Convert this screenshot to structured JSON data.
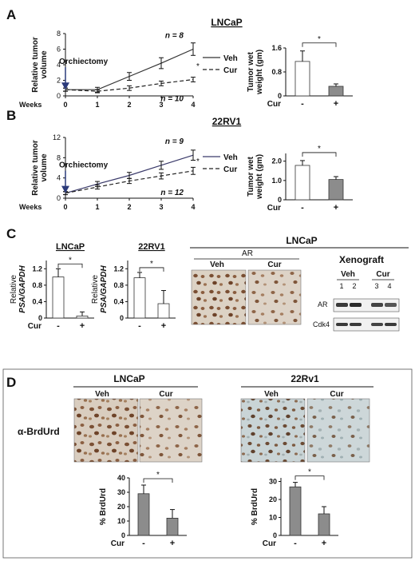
{
  "panels": {
    "A": {
      "letter": "A",
      "title": "LNCaP",
      "line": {
        "chart_data": {
          "type": "line",
          "ylabel": "Relative tumor volume",
          "xlabel": "Weeks",
          "x_ticks": [
            "0",
            "1",
            "2",
            "3",
            "4"
          ],
          "y_ticks": [
            "0",
            "2",
            "4",
            "6",
            "8"
          ],
          "ylim": [
            0,
            8
          ],
          "annotation": "Orchiectomy",
          "series": [
            {
              "name": "Veh",
              "n_label": "n = 8",
              "x": [
                0,
                1,
                2,
                3,
                4
              ],
              "y": [
                0.8,
                0.8,
                2.5,
                4.2,
                6.0
              ],
              "err": [
                0.2,
                0.3,
                0.5,
                0.7,
                0.8
              ],
              "style": "solid"
            },
            {
              "name": "Cur",
              "n_label": "n = 10",
              "x": [
                0,
                1,
                2,
                3,
                4
              ],
              "y": [
                0.8,
                0.6,
                1.0,
                1.6,
                2.1
              ],
              "err": [
                0.2,
                0.2,
                0.3,
                0.3,
                0.3
              ],
              "style": "dashed"
            }
          ],
          "star": "*"
        }
      },
      "bar": {
        "chart_data": {
          "type": "bar",
          "ylabel": "Tumor wet weight (gm)",
          "xlabel": "Cur",
          "categories": [
            "-",
            "+"
          ],
          "values": [
            1.15,
            0.32
          ],
          "err": [
            0.35,
            0.08
          ],
          "y_ticks": [
            "0",
            "0.8",
            "1.6"
          ],
          "ylim": [
            0,
            1.6
          ],
          "star": "*"
        }
      }
    },
    "B": {
      "letter": "B",
      "title": "22RV1",
      "line": {
        "chart_data": {
          "type": "line",
          "ylabel": "Relative tumor volume",
          "xlabel": "Weeks",
          "x_ticks": [
            "0",
            "1",
            "2",
            "3",
            "4"
          ],
          "y_ticks": [
            "0",
            "4",
            "8",
            "12"
          ],
          "ylim": [
            0,
            12
          ],
          "annotation": "Orchiectomy",
          "series": [
            {
              "name": "Veh",
              "n_label": "n = 9",
              "x": [
                0,
                1,
                2,
                3,
                4
              ],
              "y": [
                1.0,
                2.8,
                4.5,
                6.5,
                8.5
              ],
              "err": [
                0.3,
                0.5,
                0.6,
                0.8,
                1.0
              ],
              "style": "solid"
            },
            {
              "name": "Cur",
              "n_label": "n = 12",
              "x": [
                0,
                1,
                2,
                3,
                4
              ],
              "y": [
                1.0,
                2.2,
                3.4,
                4.4,
                5.4
              ],
              "err": [
                0.3,
                0.4,
                0.5,
                0.6,
                0.7
              ],
              "style": "dashed"
            }
          ],
          "star": "*"
        }
      },
      "bar": {
        "chart_data": {
          "type": "bar",
          "ylabel": "Tumor wet weight (gm)",
          "xlabel": "Cur",
          "categories": [
            "-",
            "+"
          ],
          "values": [
            1.78,
            1.05
          ],
          "err": [
            0.25,
            0.15
          ],
          "y_ticks": [
            "0",
            "1.0",
            "2.0"
          ],
          "ylim": [
            0,
            2.4
          ],
          "star": "*"
        }
      }
    },
    "C": {
      "letter": "C",
      "bar_lncap": {
        "chart_data": {
          "type": "bar",
          "title": "LNCaP",
          "ylabel_prefix": "Relative",
          "ylabel_italic": "PSA/GAPDH",
          "xlabel": "Cur",
          "categories": [
            "-",
            "+"
          ],
          "values": [
            1.0,
            0.05
          ],
          "err": [
            0.2,
            0.1
          ],
          "y_ticks": [
            "0",
            "0.4",
            "0.8",
            "1.2"
          ],
          "ylim": [
            0,
            1.4
          ],
          "star": "*"
        }
      },
      "bar_22rv1": {
        "chart_data": {
          "type": "bar",
          "title": "22RV1",
          "ylabel_prefix": "Relative",
          "ylabel_italic": "PSA/GAPDH",
          "categories": [
            "-",
            "+"
          ],
          "values": [
            0.98,
            0.35
          ],
          "err": [
            0.13,
            0.32
          ],
          "y_ticks": [
            "0",
            "0.4",
            "0.8",
            "1.2"
          ],
          "ylim": [
            0,
            1.4
          ],
          "star": "*"
        }
      },
      "ihc_title": "LNCaP",
      "ihc_sub": "AR",
      "ihc_labels": [
        "Veh",
        "Cur"
      ],
      "blot": {
        "title": "Xenograft",
        "groups": [
          "Veh",
          "Cur"
        ],
        "lanes": [
          "1",
          "2",
          "3",
          "4"
        ],
        "rows": [
          "AR",
          "Cdk4"
        ]
      }
    },
    "D": {
      "letter": "D",
      "left_title": "LNCaP",
      "right_title": "22Rv1",
      "image_labels": [
        "Veh",
        "Cur"
      ],
      "stain_label": "α-BrdUrd",
      "bar_lncap": {
        "chart_data": {
          "type": "bar",
          "ylabel": "% BrdUrd",
          "xlabel": "Cur",
          "categories": [
            "-",
            "+"
          ],
          "values": [
            29,
            12
          ],
          "err": [
            6,
            6
          ],
          "y_ticks": [
            "0",
            "10",
            "20",
            "30",
            "40"
          ],
          "ylim": [
            0,
            40
          ],
          "star": "*"
        }
      },
      "bar_22rv1": {
        "chart_data": {
          "type": "bar",
          "ylabel": "% BrdUrd",
          "xlabel": "Cur",
          "categories": [
            "-",
            "+"
          ],
          "values": [
            27,
            12
          ],
          "err": [
            2.5,
            4
          ],
          "y_ticks": [
            "0",
            "10",
            "20",
            "30"
          ],
          "ylim": [
            0,
            32
          ],
          "star": "*"
        }
      }
    }
  },
  "colors": {
    "veh_line_A": "#333333",
    "veh_line_B": "#3a3a6a",
    "bar_light": "#ffffff",
    "bar_dark": "#8c8c8c",
    "tissue_bg": "#cdd6d9",
    "nucleus": "#7a4d33"
  }
}
